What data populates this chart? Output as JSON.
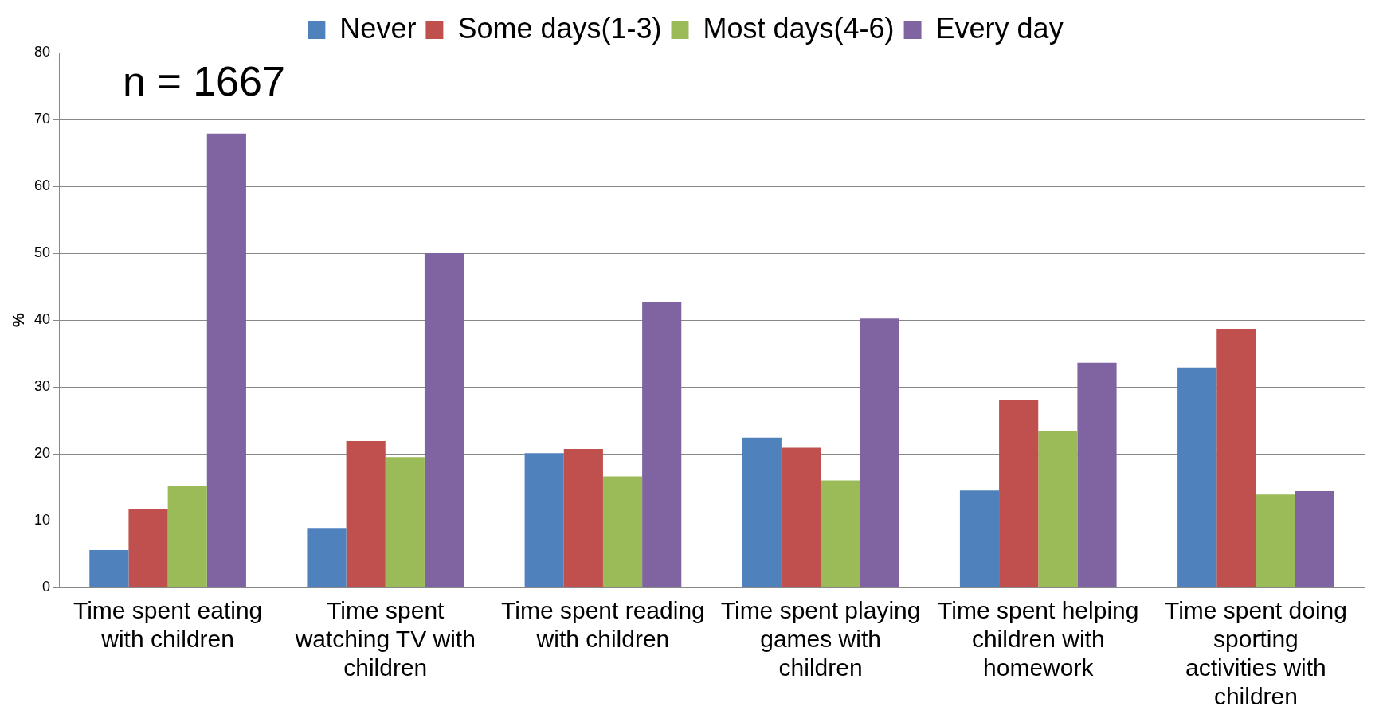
{
  "chart_data": {
    "type": "bar",
    "ylabel": "%",
    "annotations": [
      "n = 1667"
    ],
    "categories": [
      "Time spent eating with children",
      "Time spent watching TV with children",
      "Time spent reading with children",
      "Time spent playing games with children",
      "Time spent helping children with homework",
      "Time spent doing sporting activities with children"
    ],
    "series": [
      {
        "name": "Never",
        "color": "#4f81bd",
        "values": [
          5.6,
          8.9,
          20.1,
          22.4,
          14.5,
          32.9
        ]
      },
      {
        "name": "Some days(1-3)",
        "color": "#c0504d",
        "values": [
          11.7,
          21.9,
          20.7,
          20.9,
          28.0,
          38.7
        ]
      },
      {
        "name": "Most days(4-6)",
        "color": "#9bbb59",
        "values": [
          15.2,
          19.5,
          16.6,
          16.0,
          23.4,
          13.9
        ]
      },
      {
        "name": "Every day",
        "color": "#8064a2",
        "values": [
          67.9,
          50.0,
          42.7,
          40.2,
          33.6,
          14.4
        ]
      }
    ],
    "ylim": [
      0,
      80
    ],
    "yticks": [
      0,
      10,
      20,
      30,
      40,
      50,
      60,
      70,
      80
    ],
    "grid": "y",
    "legend": "top"
  }
}
